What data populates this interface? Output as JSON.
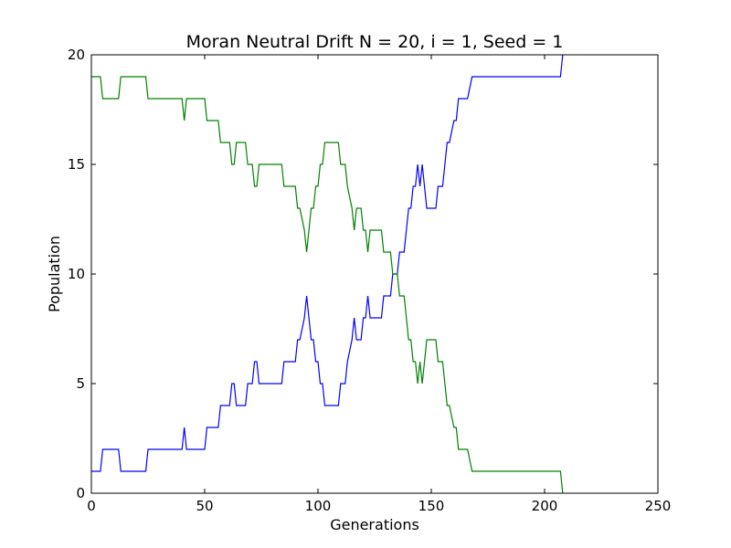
{
  "chart_data": {
    "type": "line",
    "title": "Moran Neutral Drift N = 20, i = 1, Seed = 1",
    "xlabel": "Generations",
    "ylabel": "Population",
    "xlim": [
      0,
      250
    ],
    "ylim": [
      0,
      20
    ],
    "xticks": [
      "0",
      "50",
      "100",
      "150",
      "200",
      "250"
    ],
    "yticks": [
      "0",
      "5",
      "10",
      "15",
      "20"
    ],
    "grid": false,
    "legend": "none",
    "series": [
      {
        "color": "#0000ff",
        "x": [
          0,
          4,
          5,
          12,
          13,
          24,
          25,
          40,
          41,
          42,
          50,
          51,
          56,
          57,
          61,
          62,
          63,
          64,
          68,
          69,
          71,
          72,
          73,
          74,
          84,
          85,
          90,
          91,
          92,
          94,
          95,
          96,
          97,
          98,
          99,
          100,
          101,
          102,
          103,
          109,
          110,
          112,
          113,
          115,
          116,
          117,
          119,
          120,
          121,
          122,
          123,
          128,
          129,
          132,
          133,
          135,
          136,
          138,
          139,
          140,
          141,
          142,
          143,
          144,
          145,
          146,
          147,
          148,
          149,
          152,
          153,
          155,
          156,
          157,
          158,
          160,
          161,
          162,
          165,
          166,
          168,
          169,
          207,
          208
        ],
        "values": [
          1,
          1,
          2,
          2,
          1,
          1,
          2,
          2,
          3,
          2,
          2,
          3,
          3,
          4,
          4,
          5,
          5,
          4,
          4,
          5,
          5,
          6,
          6,
          5,
          5,
          6,
          6,
          7,
          7,
          8,
          9,
          8,
          7,
          7,
          6,
          6,
          5,
          5,
          4,
          4,
          5,
          5,
          6,
          7,
          8,
          7,
          7,
          8,
          8,
          9,
          8,
          8,
          9,
          9,
          10,
          10,
          11,
          11,
          12,
          13,
          13,
          14,
          14,
          15,
          14,
          15,
          14,
          13,
          13,
          13,
          14,
          14,
          15,
          16,
          16,
          17,
          17,
          18,
          18,
          18,
          19,
          19,
          19,
          20
        ]
      },
      {
        "color": "#008000",
        "x": [
          0,
          4,
          5,
          12,
          13,
          24,
          25,
          40,
          41,
          42,
          50,
          51,
          56,
          57,
          61,
          62,
          63,
          64,
          68,
          69,
          71,
          72,
          73,
          74,
          84,
          85,
          90,
          91,
          92,
          94,
          95,
          96,
          97,
          98,
          99,
          100,
          101,
          102,
          103,
          109,
          110,
          112,
          113,
          115,
          116,
          117,
          119,
          120,
          121,
          122,
          123,
          128,
          129,
          132,
          133,
          135,
          136,
          138,
          139,
          140,
          141,
          142,
          143,
          144,
          145,
          146,
          147,
          148,
          149,
          152,
          153,
          155,
          156,
          157,
          158,
          160,
          161,
          162,
          165,
          166,
          168,
          169,
          207,
          208
        ],
        "values": [
          19,
          19,
          18,
          18,
          19,
          19,
          18,
          18,
          17,
          18,
          18,
          17,
          17,
          16,
          16,
          15,
          15,
          16,
          16,
          15,
          15,
          14,
          14,
          15,
          15,
          14,
          14,
          13,
          13,
          12,
          11,
          12,
          13,
          13,
          14,
          14,
          15,
          15,
          16,
          16,
          15,
          15,
          14,
          13,
          12,
          13,
          13,
          12,
          12,
          11,
          12,
          12,
          11,
          11,
          10,
          10,
          9,
          9,
          8,
          7,
          7,
          6,
          6,
          5,
          6,
          5,
          6,
          7,
          7,
          7,
          6,
          6,
          5,
          4,
          4,
          3,
          3,
          2,
          2,
          2,
          1,
          1,
          1,
          0
        ]
      }
    ]
  }
}
